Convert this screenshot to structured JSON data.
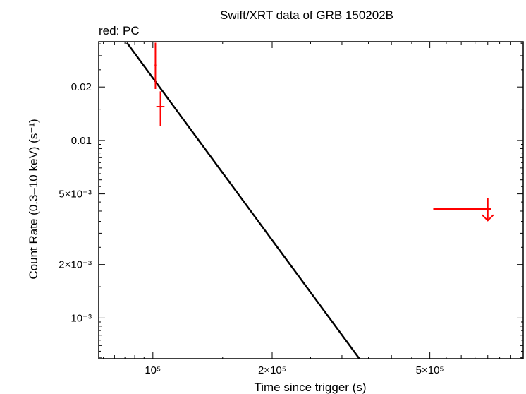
{
  "chart_data": {
    "type": "scatter",
    "title": "Swift/XRT data of GRB 150202B",
    "subtitle": "red: PC",
    "xlabel": "Time since trigger (s)",
    "ylabel": "Count Rate (0.3–10 keV) (s⁻¹)",
    "xscale": "log",
    "yscale": "log",
    "xlim": [
      73000,
      860000
    ],
    "ylim": [
      0.00059,
      0.036
    ],
    "grid": false,
    "legend": "none",
    "x_ticks": [
      {
        "value": 100000,
        "label": "10⁵"
      },
      {
        "value": 200000,
        "label": "2×10⁵"
      },
      {
        "value": 500000,
        "label": "5×10⁵"
      }
    ],
    "y_ticks": [
      {
        "value": 0.02,
        "label": "0.02"
      },
      {
        "value": 0.01,
        "label": "0.01"
      },
      {
        "value": 0.005,
        "label": "5×10⁻³"
      },
      {
        "value": 0.002,
        "label": "2×10⁻³"
      },
      {
        "value": 0.001,
        "label": "10⁻³"
      }
    ],
    "series": [
      {
        "color": "#ff0000",
        "points": [
          {
            "x": 101500,
            "xerr": [
              101000,
              102000
            ],
            "y": 0.0265,
            "yerr": [
              0.0195,
              0.0355
            ]
          },
          {
            "x": 104500,
            "xerr": [
              102000,
              107000
            ],
            "y": 0.0155,
            "yerr": [
              0.0121,
              0.0189
            ]
          }
        ],
        "upper_limits": [
          {
            "x": 700000,
            "xerr": [
              510000,
              715000
            ],
            "y": 0.0041
          }
        ]
      }
    ],
    "model_line": {
      "color": "#000000",
      "points": [
        {
          "x": 86000,
          "y": 0.0355
        },
        {
          "x": 332000,
          "y": 0.00059
        }
      ]
    }
  }
}
